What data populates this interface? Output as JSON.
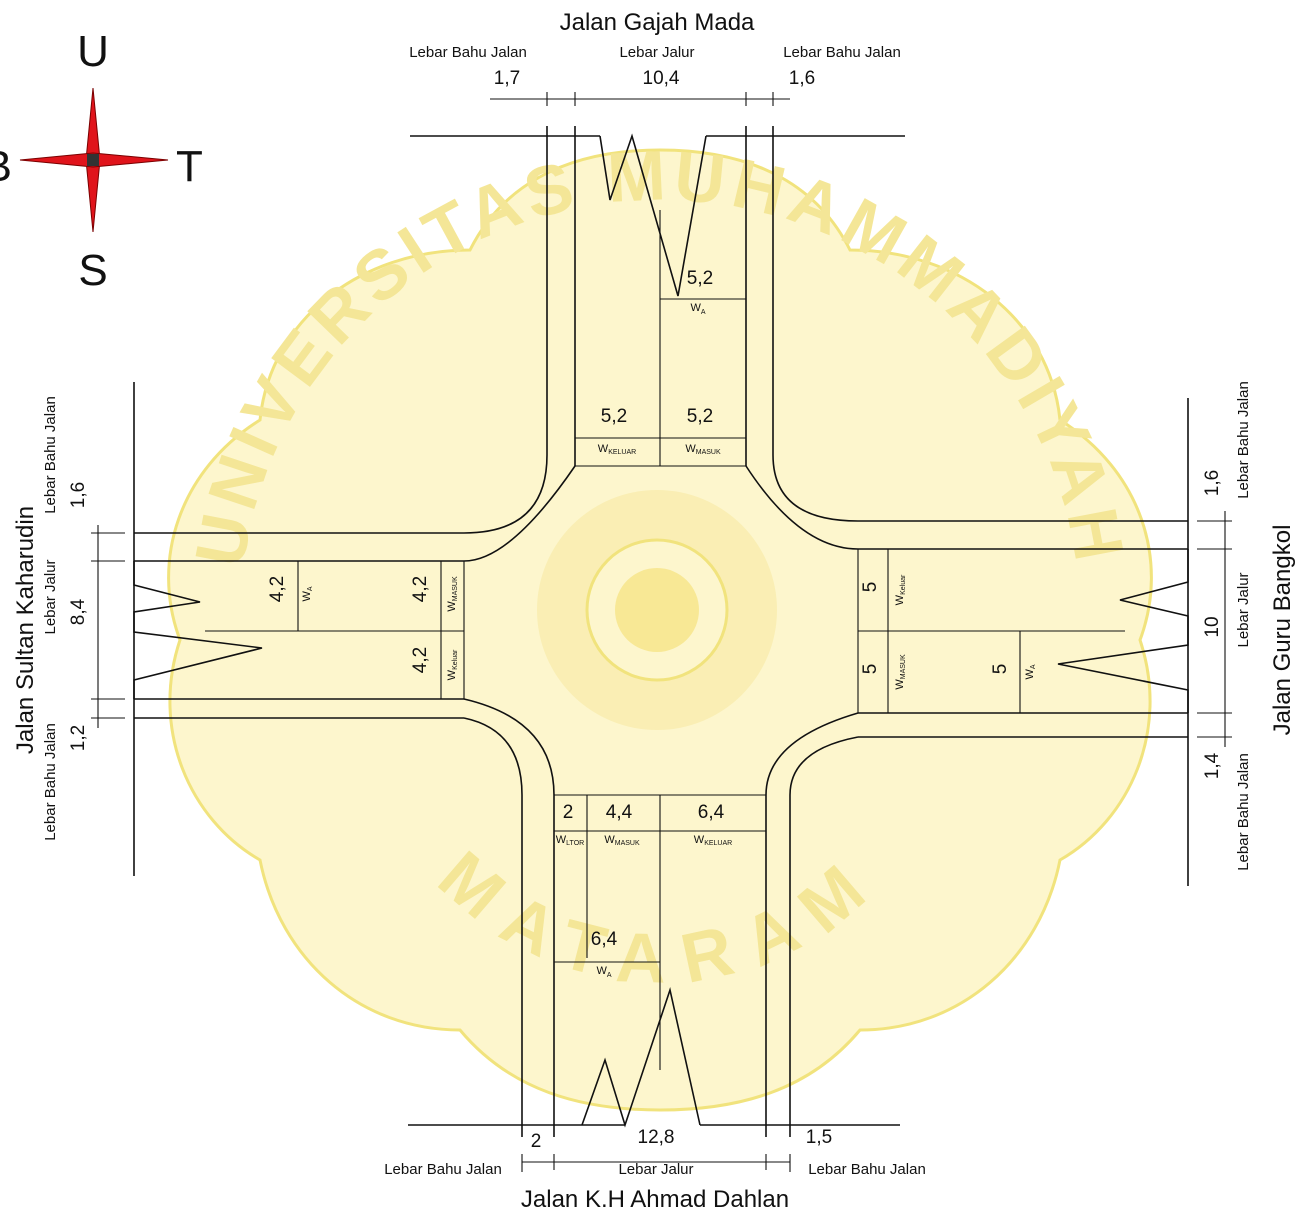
{
  "colors": {
    "line": "#111111",
    "compass_red": "#e0141b",
    "watermark_fill": "#fdf6c8",
    "watermark_stroke": "#f0e070",
    "watermark_text": "#f3e48c"
  },
  "compass": {
    "north": "U",
    "south": "S",
    "east": "T",
    "west": "B"
  },
  "streets": {
    "north": "Jalan Gajah Mada",
    "south": "Jalan K.H Ahmad Dahlan",
    "west": "Jalan Sultan Kaharudin",
    "east": "Jalan Guru Bangkol"
  },
  "labels": {
    "shoulder": "Lebar Bahu Jalan",
    "carriageway": "Lebar Jalur"
  },
  "symbols": {
    "w": "W",
    "sub_a": "A",
    "sub_keluar_caps": "KELUAR",
    "sub_masuk_caps": "MASUK",
    "sub_keluar": "Keluar",
    "sub_ltor": "LTOR"
  },
  "north_leg": {
    "shoulder_left": "1,7",
    "carriageway": "10,4",
    "shoulder_right": "1,6",
    "wa": "5,2",
    "w_keluar": "5,2",
    "w_masuk": "5,2"
  },
  "south_leg": {
    "shoulder_left": "2",
    "carriageway": "12,8",
    "shoulder_right": "1,5",
    "w_ltor": "2",
    "w_masuk": "4,4",
    "w_keluar": "6,4",
    "wa": "6,4"
  },
  "west_leg": {
    "shoulder_top": "1,6",
    "carriageway": "8,4",
    "shoulder_bottom": "1,2",
    "wa": "4,2",
    "w_masuk": "4,2",
    "w_keluar": "4,2"
  },
  "east_leg": {
    "shoulder_top": "1,6",
    "carriageway": "10",
    "shoulder_bottom": "1,4",
    "w_keluar": "5",
    "w_masuk": "5",
    "wa": "5"
  },
  "watermark": {
    "arc_top": "UNIVERSITAS MUHAMMADIYAH",
    "arc_bottom": "MATARAM"
  }
}
